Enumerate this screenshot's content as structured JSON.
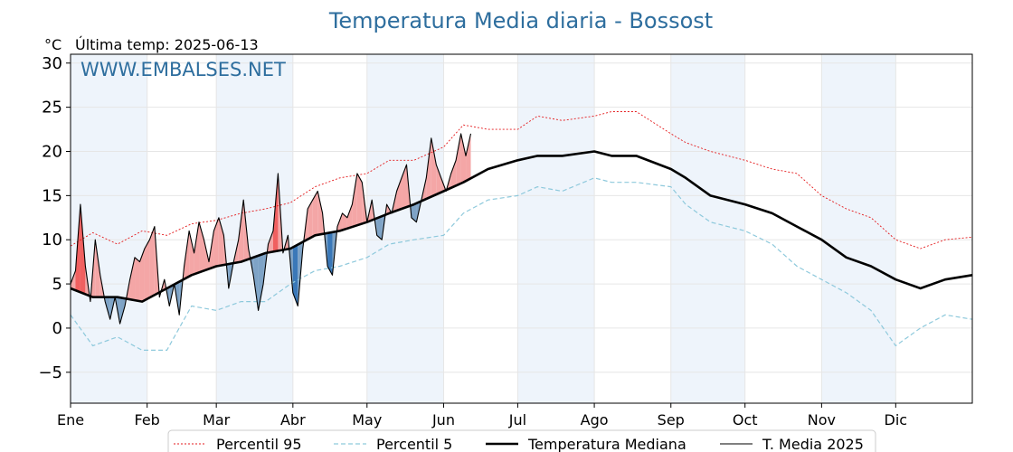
{
  "chart_data": {
    "type": "line",
    "title": "Temperatura Media diaria - Bossost",
    "unit_label": "°C",
    "subtitle": "Última temp: 2025-06-13",
    "watermark": "WWW.EMBALSES.NET",
    "ylim": [
      -8.5,
      31
    ],
    "yticks": [
      30,
      25,
      20,
      15,
      10,
      5,
      0,
      -5
    ],
    "ytick_labels": [
      "30",
      "25",
      "20",
      "15",
      "10",
      "5",
      "0",
      "−5"
    ],
    "xlim": [
      1,
      366
    ],
    "months": [
      "Ene",
      "Feb",
      "Mar",
      "Abr",
      "May",
      "Jun",
      "Jul",
      "Ago",
      "Sep",
      "Oct",
      "Nov",
      "Dic"
    ],
    "month_start_days": [
      1,
      32,
      60,
      91,
      121,
      152,
      182,
      213,
      244,
      274,
      305,
      335
    ],
    "grid": true,
    "legend_position": "bottom-center",
    "colors": {
      "p95": "#e41a1c",
      "p5": "#8ec9dc",
      "median": "#000000",
      "current": "#000000",
      "above_fill": "#f4a6a6",
      "above_fill_strong": "#f06060",
      "below_fill": "#7ea3c6",
      "below_fill_strong": "#3a78b8",
      "band": "#eef4fb",
      "title": "#2e6e9e"
    },
    "series": [
      {
        "name": "Percentil 95",
        "key": "p95",
        "style": "dotted",
        "x": [
          1,
          10,
          20,
          30,
          40,
          50,
          60,
          70,
          80,
          90,
          100,
          110,
          121,
          130,
          140,
          152,
          160,
          170,
          182,
          190,
          200,
          213,
          220,
          230,
          244,
          250,
          260,
          274,
          285,
          295,
          305,
          315,
          325,
          335,
          345,
          355,
          366
        ],
        "values": [
          9.3,
          10.8,
          9.5,
          11.0,
          10.5,
          11.8,
          12.2,
          13.0,
          13.5,
          14.2,
          16.0,
          17.0,
          17.5,
          19.0,
          19.0,
          20.5,
          23.0,
          22.5,
          22.5,
          24.0,
          23.5,
          24.0,
          24.5,
          24.5,
          22.0,
          21.0,
          20.0,
          19.0,
          18.0,
          17.5,
          15.0,
          13.5,
          12.5,
          10.0,
          9.0,
          10.0,
          10.3
        ]
      },
      {
        "name": "Percentil 5",
        "key": "p5",
        "style": "dashed",
        "x": [
          1,
          10,
          20,
          30,
          40,
          50,
          60,
          70,
          80,
          90,
          100,
          110,
          121,
          130,
          140,
          152,
          160,
          170,
          182,
          190,
          200,
          213,
          220,
          230,
          244,
          250,
          260,
          274,
          285,
          295,
          305,
          315,
          325,
          335,
          345,
          355,
          366
        ],
        "values": [
          1.5,
          -2.0,
          -1.0,
          -2.5,
          -2.5,
          2.5,
          2.0,
          3.0,
          3.0,
          5.0,
          6.5,
          7.0,
          8.0,
          9.5,
          10.0,
          10.5,
          13.0,
          14.5,
          15.0,
          16.0,
          15.5,
          17.0,
          16.5,
          16.5,
          16.0,
          14.0,
          12.0,
          11.0,
          9.5,
          7.0,
          5.5,
          4.0,
          2.0,
          -2.0,
          0.0,
          1.5,
          1.0
        ]
      },
      {
        "name": "Temperatura Mediana",
        "key": "median",
        "style": "solid-thick",
        "x": [
          1,
          10,
          20,
          30,
          40,
          50,
          60,
          70,
          80,
          90,
          100,
          110,
          121,
          130,
          140,
          152,
          160,
          170,
          182,
          190,
          200,
          213,
          220,
          230,
          244,
          250,
          260,
          274,
          285,
          295,
          305,
          315,
          325,
          335,
          345,
          355,
          366
        ],
        "values": [
          4.5,
          3.5,
          3.5,
          3.0,
          4.5,
          6.0,
          7.0,
          7.5,
          8.5,
          9.0,
          10.5,
          11.0,
          12.0,
          13.0,
          14.0,
          15.5,
          16.5,
          18.0,
          19.0,
          19.5,
          19.5,
          20.0,
          19.5,
          19.5,
          18.0,
          17.0,
          15.0,
          14.0,
          13.0,
          11.5,
          10.0,
          8.0,
          7.0,
          5.5,
          4.5,
          5.5,
          6.0
        ]
      },
      {
        "name": "T. Media 2025",
        "key": "current",
        "style": "solid-thin",
        "x": [
          1,
          3,
          5,
          7,
          9,
          11,
          13,
          15,
          17,
          19,
          21,
          23,
          25,
          27,
          29,
          31,
          33,
          35,
          37,
          39,
          41,
          43,
          45,
          47,
          49,
          51,
          53,
          55,
          57,
          59,
          61,
          63,
          65,
          67,
          69,
          71,
          73,
          75,
          77,
          79,
          81,
          83,
          85,
          87,
          89,
          91,
          93,
          95,
          97,
          99,
          101,
          103,
          105,
          107,
          109,
          111,
          113,
          115,
          117,
          119,
          121,
          123,
          125,
          127,
          129,
          131,
          133,
          135,
          137,
          139,
          141,
          143,
          145,
          147,
          149,
          151,
          153,
          155,
          157,
          159,
          161,
          163
        ],
        "values": [
          5.0,
          6.5,
          14.0,
          7.0,
          3.0,
          10.0,
          6.0,
          3.0,
          1.0,
          3.5,
          0.5,
          2.5,
          5.5,
          8.0,
          7.5,
          9.0,
          10.0,
          11.5,
          3.5,
          5.5,
          2.5,
          5.0,
          1.5,
          7.0,
          11.0,
          8.5,
          12.0,
          10.0,
          7.5,
          11.0,
          12.5,
          10.5,
          4.5,
          7.5,
          10.0,
          14.5,
          9.0,
          6.0,
          2.0,
          5.0,
          9.5,
          11.0,
          17.5,
          8.5,
          10.5,
          4.0,
          2.5,
          9.0,
          13.5,
          14.5,
          15.5,
          13.0,
          7.0,
          6.0,
          11.5,
          13.0,
          12.5,
          14.0,
          17.5,
          16.5,
          12.0,
          14.5,
          10.5,
          10.0,
          14.0,
          13.0,
          15.5,
          17.0,
          18.5,
          12.5,
          12.0,
          14.5,
          17.0,
          21.5,
          18.5,
          17.0,
          15.5,
          17.5,
          19.0,
          22.0,
          19.5,
          22.0
        ]
      }
    ]
  },
  "legend": {
    "items": [
      {
        "label": "Percentil 95",
        "key": "p95"
      },
      {
        "label": "Percentil 5",
        "key": "p5"
      },
      {
        "label": "Temperatura Mediana",
        "key": "median"
      },
      {
        "label": "T. Media 2025",
        "key": "current"
      }
    ]
  }
}
